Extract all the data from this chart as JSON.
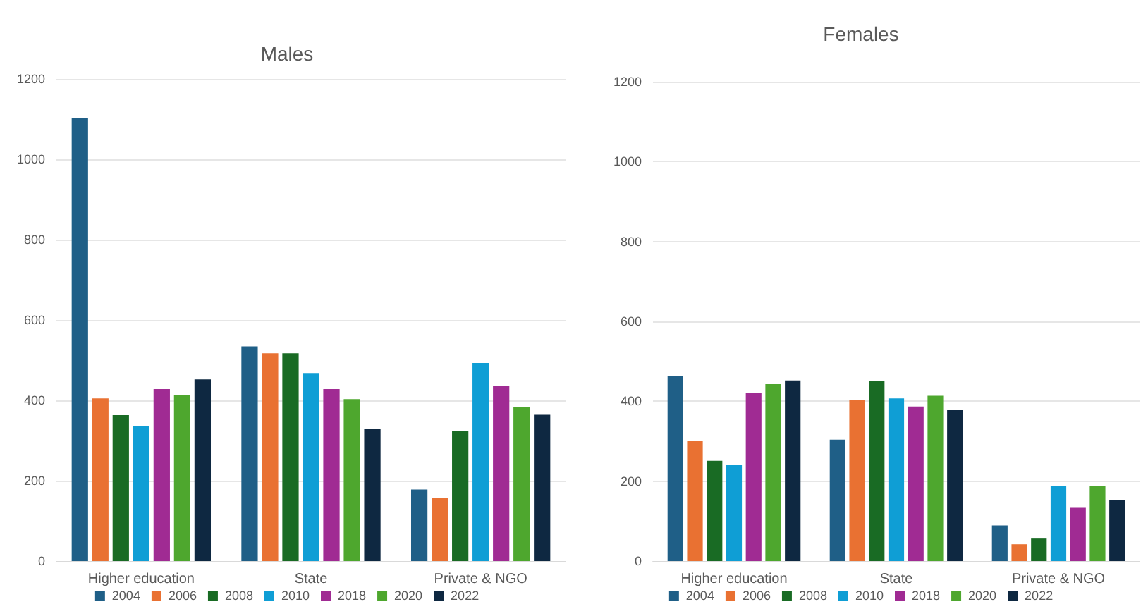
{
  "chart_data": [
    {
      "type": "bar",
      "title": "Males",
      "categories": [
        "Higher education",
        "State",
        "Private & NGO"
      ],
      "ylim": [
        0,
        1200
      ],
      "yticks": [
        0,
        200,
        400,
        600,
        800,
        1000,
        1200
      ],
      "grid": "y",
      "legend": "bottom",
      "series": [
        {
          "name": "2004",
          "color": "#1f5f87",
          "values": [
            1103,
            534,
            178
          ]
        },
        {
          "name": "2006",
          "color": "#e97132",
          "values": [
            405,
            517,
            157
          ]
        },
        {
          "name": "2008",
          "color": "#196b24",
          "values": [
            363,
            517,
            323
          ]
        },
        {
          "name": "2010",
          "color": "#0f9ed5",
          "values": [
            335,
            468,
            493
          ]
        },
        {
          "name": "2018",
          "color": "#a02b93",
          "values": [
            428,
            428,
            435
          ]
        },
        {
          "name": "2020",
          "color": "#4ea72e",
          "values": [
            414,
            403,
            384
          ]
        },
        {
          "name": "2022",
          "color": "#0e2841",
          "values": [
            452,
            330,
            364
          ]
        }
      ]
    },
    {
      "type": "bar",
      "title": "Females",
      "categories": [
        "Higher education",
        "State",
        "Private & NGO"
      ],
      "ylim": [
        0,
        1200
      ],
      "yticks": [
        0,
        200,
        400,
        600,
        800,
        1000,
        1200
      ],
      "grid": "y",
      "legend": "bottom",
      "series": [
        {
          "name": "2004",
          "color": "#1f5f87",
          "values": [
            463,
            304,
            89
          ]
        },
        {
          "name": "2006",
          "color": "#e97132",
          "values": [
            301,
            403,
            42
          ]
        },
        {
          "name": "2008",
          "color": "#196b24",
          "values": [
            251,
            451,
            58
          ]
        },
        {
          "name": "2010",
          "color": "#0f9ed5",
          "values": [
            240,
            407,
            187
          ]
        },
        {
          "name": "2018",
          "color": "#a02b93",
          "values": [
            420,
            387,
            135
          ]
        },
        {
          "name": "2020",
          "color": "#4ea72e",
          "values": [
            443,
            414,
            189
          ]
        },
        {
          "name": "2022",
          "color": "#0e2841",
          "values": [
            452,
            379,
            153
          ]
        }
      ]
    }
  ]
}
